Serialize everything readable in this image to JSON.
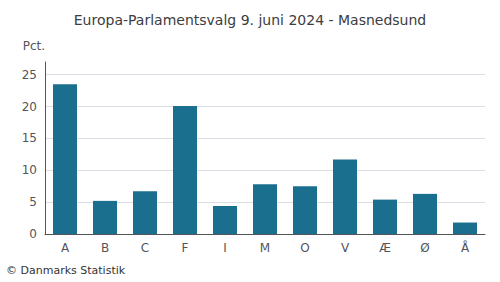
{
  "chart_data": {
    "type": "bar",
    "title": "Europa-Parlamentsvalg 9. juni 2024 - Masnedsund",
    "ylabel": "Pct.",
    "footer": "© Danmarks Statistik",
    "categories": [
      "A",
      "B",
      "C",
      "F",
      "I",
      "M",
      "O",
      "V",
      "Æ",
      "Ø",
      "Å"
    ],
    "values": [
      23.5,
      5.2,
      6.7,
      20.1,
      4.4,
      7.8,
      7.5,
      11.7,
      5.4,
      6.3,
      1.8
    ],
    "color": "#1a6e8e",
    "ylim": [
      0,
      27
    ],
    "yticks": [
      0,
      5,
      10,
      15,
      20,
      25
    ],
    "grid": true
  }
}
